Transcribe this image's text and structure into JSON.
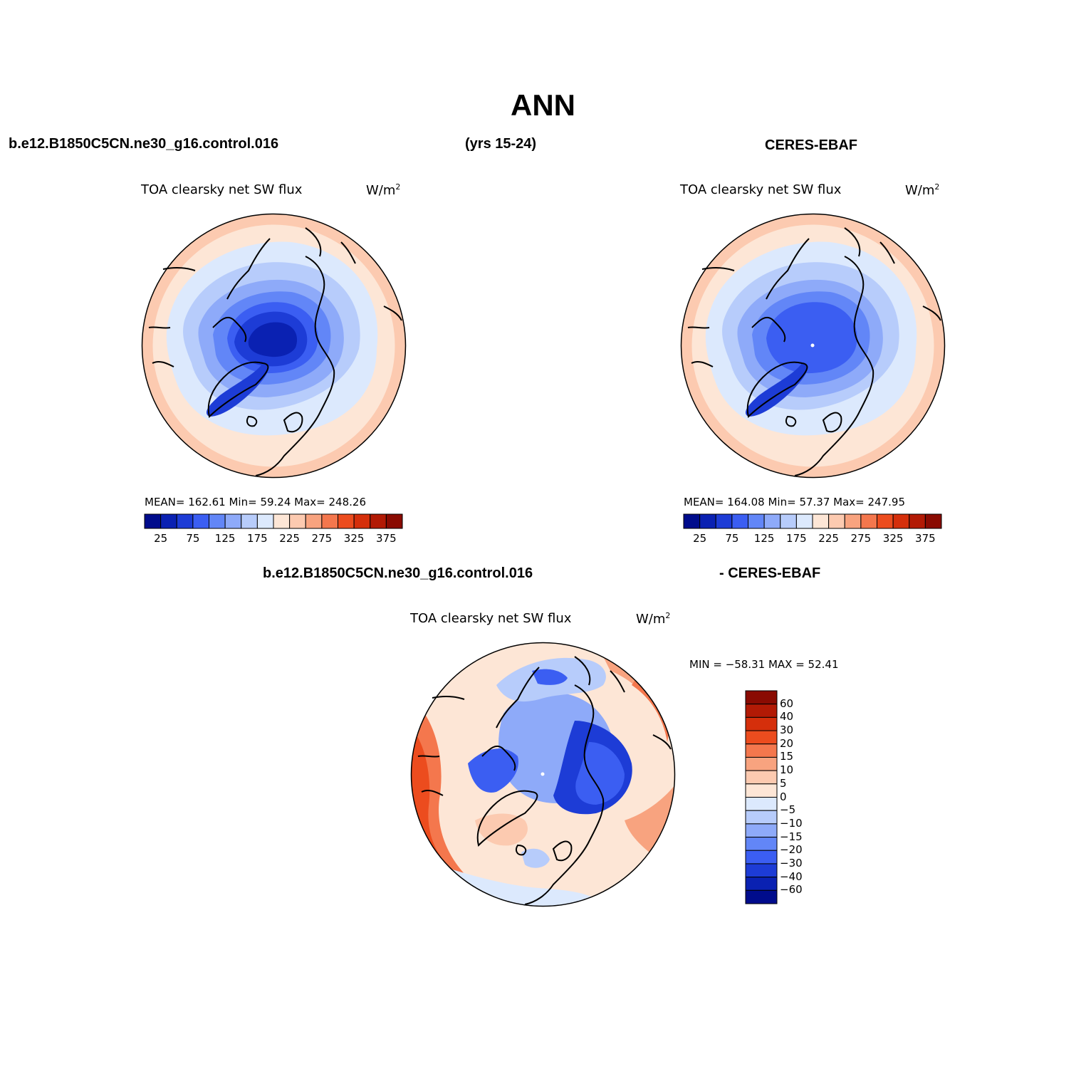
{
  "figure": {
    "title": "ANN",
    "left_header_case": "b.e12.B1850C5CN.ne30_g16.control.016",
    "center_header": "(yrs 15-24)",
    "right_header_case": "CERES-EBAF",
    "bottom_header_case": "b.e12.B1850C5CN.ne30_g16.control.016",
    "bottom_header_ref": "- CERES-EBAF"
  },
  "panels": [
    {
      "name": "model",
      "variable": "TOA clearsky net SW flux",
      "units": "W/m",
      "units_sup": "2",
      "stats_text": "MEAN= 162.61   Min=   59.24   Max= 248.26"
    },
    {
      "name": "observation",
      "variable": "TOA clearsky net SW flux",
      "units": "W/m",
      "units_sup": "2",
      "stats_text": "MEAN= 164.08   Min=   57.37   Max= 247.95"
    },
    {
      "name": "difference",
      "variable": "TOA clearsky net SW flux",
      "units": "W/m",
      "units_sup": "2",
      "stats_text": "MIN = −58.31  MAX =   52.41"
    }
  ],
  "colorbar_abs": {
    "colors": [
      "#000c8c",
      "#0a21b2",
      "#1d3cd6",
      "#3b5ef2",
      "#6286f7",
      "#8eaaf9",
      "#b7ccfb",
      "#dce9fd",
      "#fde6d6",
      "#fccab0",
      "#f8a37f",
      "#f4774d",
      "#ec4c1e",
      "#d52f0b",
      "#b21a05",
      "#8a0b02"
    ],
    "tick_labels": [
      "25",
      "75",
      "125",
      "175",
      "225",
      "275",
      "325",
      "375"
    ]
  },
  "colorbar_diff": {
    "colors_top_to_bottom": [
      "#8a0b02",
      "#b21a05",
      "#d52f0b",
      "#ec4c1e",
      "#f4774d",
      "#f8a37f",
      "#fccab0",
      "#fde6d6",
      "#dce9fd",
      "#b7ccfb",
      "#8eaaf9",
      "#6286f7",
      "#3b5ef2",
      "#1d3cd6",
      "#0a21b2",
      "#000c8c"
    ],
    "tick_labels_top_to_bottom": [
      "60",
      "40",
      "30",
      "20",
      "15",
      "10",
      "5",
      "0",
      "−5",
      "−10",
      "−15",
      "−20",
      "−30",
      "−40",
      "−60"
    ]
  },
  "chart_data": [
    {
      "type": "heatmap",
      "projection": "north polar stereographic",
      "title": "TOA clearsky net SW flux",
      "units": "W/m2",
      "case": "b.e12.B1850C5CN.ne30_g16.control.016",
      "mean": 162.61,
      "min": 59.24,
      "max": 248.26,
      "levels": [
        25,
        50,
        75,
        100,
        125,
        150,
        175,
        200,
        225,
        250,
        275,
        300,
        325,
        350,
        375
      ]
    },
    {
      "type": "heatmap",
      "projection": "north polar stereographic",
      "title": "TOA clearsky net SW flux",
      "units": "W/m2",
      "case": "CERES-EBAF",
      "mean": 164.08,
      "min": 57.37,
      "max": 247.95,
      "levels": [
        25,
        50,
        75,
        100,
        125,
        150,
        175,
        200,
        225,
        250,
        275,
        300,
        325,
        350,
        375
      ]
    },
    {
      "type": "heatmap",
      "projection": "north polar stereographic",
      "title": "TOA clearsky net SW flux",
      "units": "W/m2",
      "case": "b.e12.B1850C5CN.ne30_g16.control.016 - CERES-EBAF",
      "min": -58.31,
      "max": 52.41,
      "levels": [
        -60,
        -40,
        -30,
        -20,
        -15,
        -10,
        -5,
        0,
        5,
        10,
        15,
        20,
        30,
        40,
        60
      ]
    }
  ]
}
